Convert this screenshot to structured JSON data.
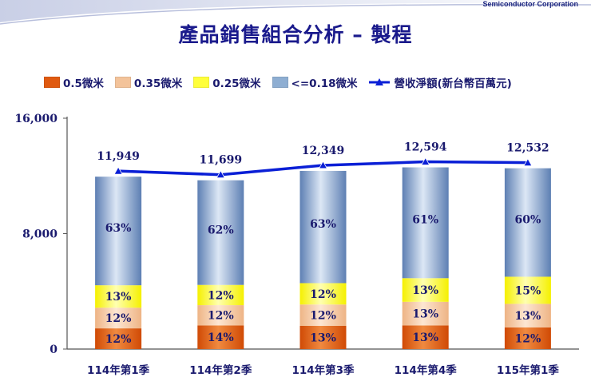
{
  "header": {
    "company": "Semiconductor Corporation",
    "title": "產品銷售組合分析 – 製程"
  },
  "colors": {
    "title": "#1a1a8c",
    "axis": "#333333",
    "line": "#0a1fd6",
    "s05": "#e05a10",
    "s035": "#f3c39a",
    "s025": "#ffff3a",
    "s018": "#8eaed2",
    "text": "#1a1a6e"
  },
  "legend": {
    "items": [
      {
        "label": "0.5微米",
        "color": "#e05a10",
        "kind": "box"
      },
      {
        "label": "0.35微米",
        "color": "#f3c39a",
        "kind": "box"
      },
      {
        "label": "0.25微米",
        "color": "#ffff3a",
        "kind": "box"
      },
      {
        "label": "<=0.18微米",
        "color": "#8eaed2",
        "kind": "box"
      },
      {
        "label": "營收淨額(新台幣百萬元)",
        "color": "#0a1fd6",
        "kind": "line"
      }
    ]
  },
  "chart_data": {
    "type": "bar",
    "stacked": true,
    "title": "產品銷售組合分析 – 製程",
    "categories": [
      "114年第1季",
      "114年第2季",
      "114年第3季",
      "114年第4季",
      "115年第1季"
    ],
    "y_ticks": [
      "0",
      "8,000",
      "16,000"
    ],
    "ylim": [
      0,
      16000
    ],
    "grid": false,
    "legend_position": "top",
    "series": [
      {
        "name": "0.5微米",
        "percent": [
          12,
          14,
          13,
          13,
          12
        ],
        "labels": [
          "12%",
          "14%",
          "13%",
          "13%",
          "12%"
        ]
      },
      {
        "name": "0.35微米",
        "percent": [
          12,
          12,
          12,
          13,
          13
        ],
        "labels": [
          "12%",
          "12%",
          "12%",
          "13%",
          "13%"
        ]
      },
      {
        "name": "0.25微米",
        "percent": [
          13,
          12,
          12,
          13,
          15
        ],
        "labels": [
          "13%",
          "12%",
          "12%",
          "13%",
          "15%"
        ]
      },
      {
        "name": "<=0.18微米",
        "percent": [
          63,
          62,
          63,
          61,
          60
        ],
        "labels": [
          "63%",
          "62%",
          "63%",
          "61%",
          "60%"
        ]
      }
    ],
    "line": {
      "name": "營收淨額(新台幣百萬元)",
      "values": [
        11949,
        11699,
        12349,
        12594,
        12532
      ],
      "labels": [
        "11,949",
        "11,699",
        "12,349",
        "12,594",
        "12,532"
      ]
    }
  }
}
